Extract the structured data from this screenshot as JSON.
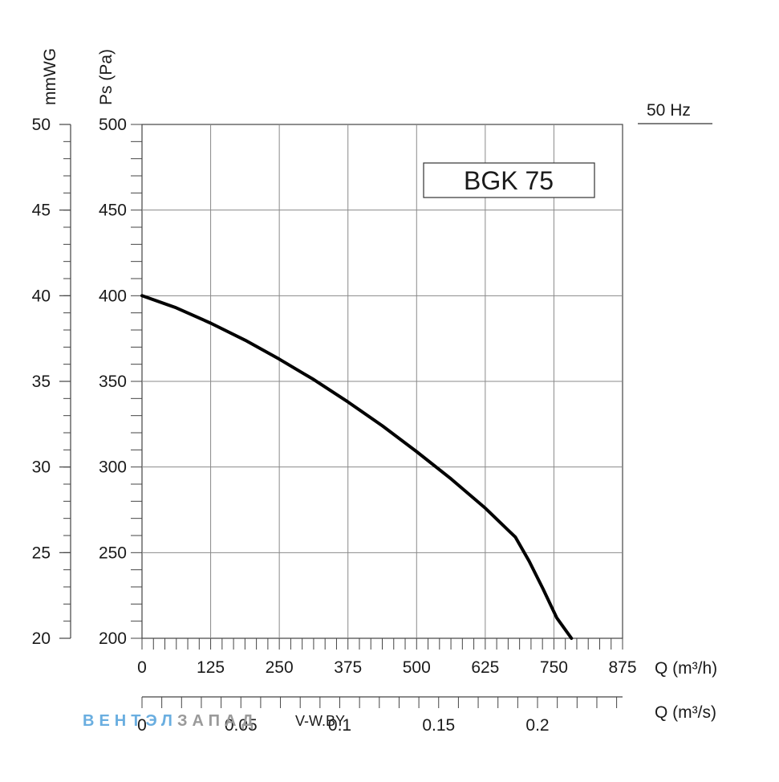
{
  "chart_data": {
    "type": "line",
    "model_label": "BGK 75",
    "frequency_label": "50 Hz",
    "xlabel": "Q (m³/h)",
    "xlabel_secondary": "Q (m³/s)",
    "ylabel": "Ps (Pa)",
    "ylabel_secondary": "mmWG",
    "xlim": [
      0,
      875
    ],
    "ylim": [
      200,
      500
    ],
    "secondary_xlim": [
      0,
      0.243
    ],
    "secondary_ylim": [
      20,
      50
    ],
    "grid": true,
    "x_ticks": [
      "0",
      "125",
      "250",
      "375",
      "500",
      "625",
      "750",
      "875"
    ],
    "y_ticks": [
      "200",
      "250",
      "300",
      "350",
      "400",
      "450",
      "500"
    ],
    "secondary_x_ticks": [
      "0",
      "0.05",
      "0.1",
      "0.15",
      "0.2"
    ],
    "secondary_y_ticks": [
      "20",
      "25",
      "30",
      "35",
      "40",
      "45",
      "50"
    ],
    "series": [
      {
        "color": "#000000",
        "x": [
          0,
          62,
          125,
          188,
          250,
          313,
          375,
          438,
          500,
          563,
          625,
          680,
          705,
          730,
          755,
          782
        ],
        "y": [
          400,
          393,
          384,
          374,
          363,
          351,
          338,
          324,
          309,
          293,
          276,
          259,
          245,
          229,
          212,
          200
        ]
      }
    ]
  },
  "watermark": {
    "brand_a": "ВЕНТ",
    "brand_b": "ЭЛ",
    "brand_c": "ЗАПАД",
    "site": "V-W.BY",
    "color_a": "#6aaee0",
    "color_c": "#9a9a9a"
  }
}
